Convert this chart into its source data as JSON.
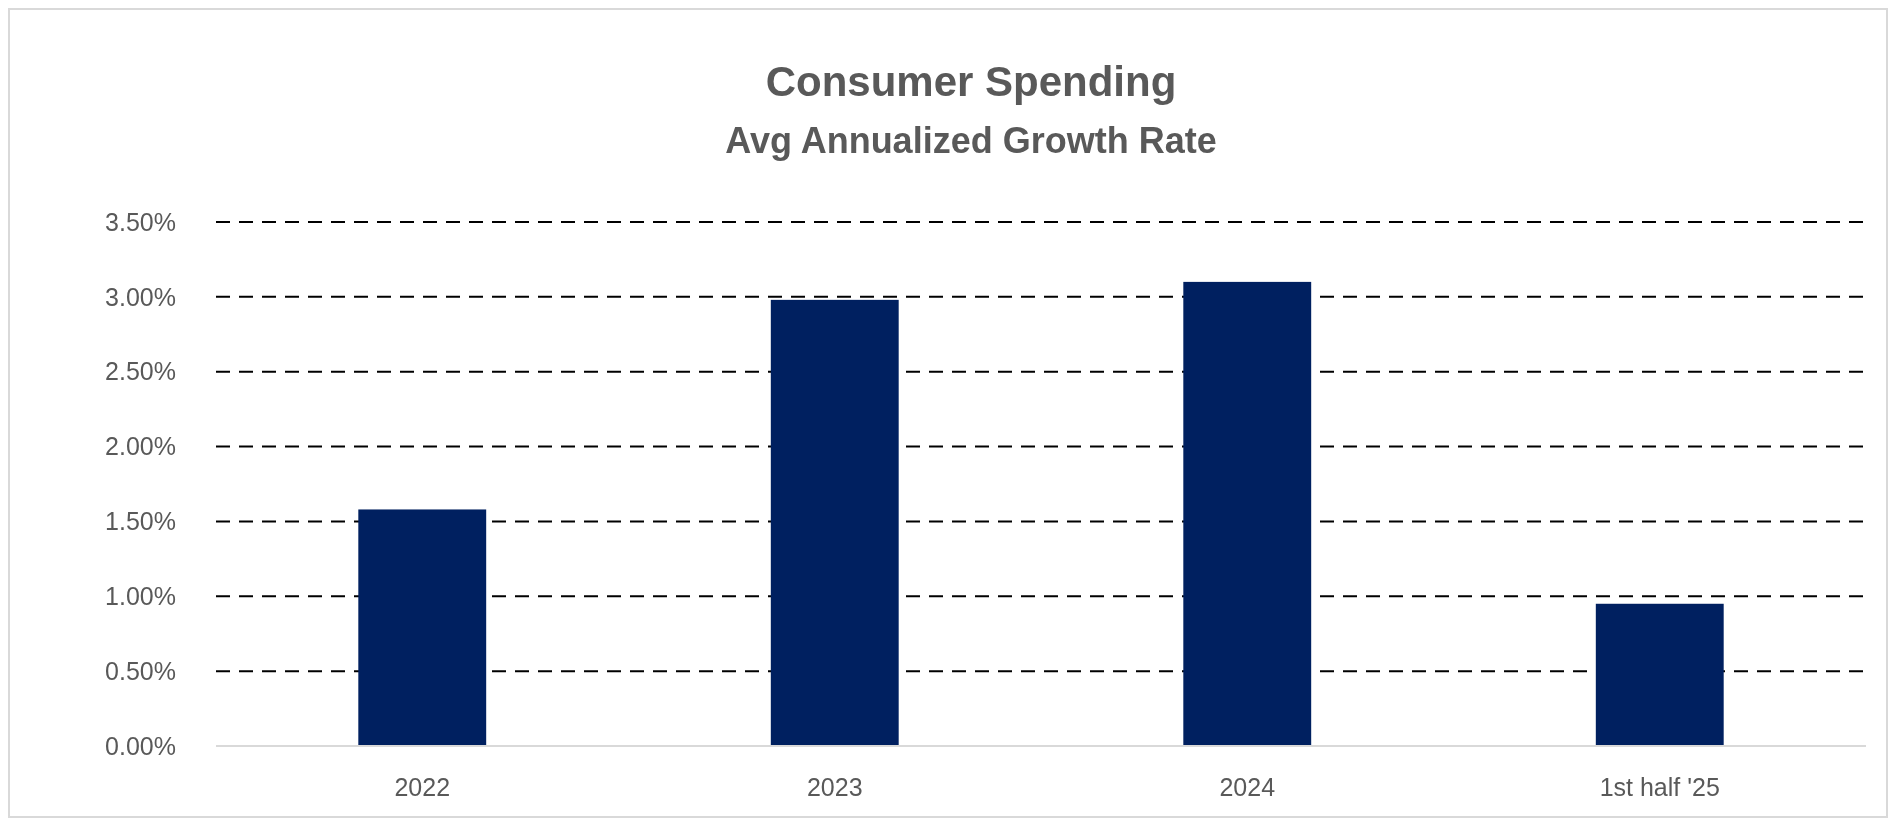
{
  "chart_data": {
    "type": "bar",
    "title": "Consumer Spending",
    "subtitle": "Avg Annualized Growth Rate",
    "categories": [
      "2022",
      "2023",
      "2024",
      "1st half '25"
    ],
    "values": [
      1.58,
      2.98,
      3.1,
      0.95
    ],
    "color": "#002060",
    "ylim": [
      0,
      3.5
    ],
    "yticks": [
      {
        "value": 0,
        "label": "0.00%"
      },
      {
        "value": 0.5,
        "label": "0.50%"
      },
      {
        "value": 1,
        "label": "1.00%"
      },
      {
        "value": 1.5,
        "label": "1.50%"
      },
      {
        "value": 2,
        "label": "2.00%"
      },
      {
        "value": 2.5,
        "label": "2.50%"
      },
      {
        "value": 3,
        "label": "3.00%"
      },
      {
        "value": 3.5,
        "label": "3.50%"
      }
    ],
    "grid": "y"
  }
}
